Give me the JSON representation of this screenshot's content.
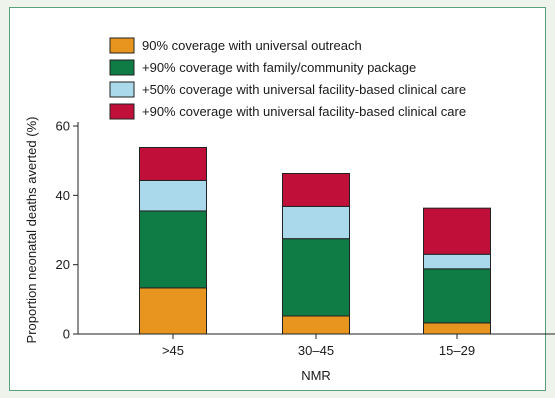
{
  "chart_data": {
    "type": "bar",
    "stacked": true,
    "title": "",
    "xlabel": "NMR",
    "ylabel": "Proportion neonatal deaths averted (%)",
    "ylim": [
      0,
      60
    ],
    "yticks": [
      "0",
      "20",
      "40",
      "60"
    ],
    "categories": [
      ">45",
      "30–45",
      "15–29"
    ],
    "grid": false,
    "legend_position": "top",
    "series": [
      {
        "name": "90% coverage with universal outreach",
        "color": "#e8951f",
        "values": [
          13.3,
          5.2,
          3.2
        ]
      },
      {
        "name": "+90% coverage with family/community package",
        "color": "#0f7b45",
        "values": [
          22.2,
          22.3,
          15.6
        ]
      },
      {
        "name": "+50% coverage with universal facility-based clinical care",
        "color": "#a9d9ea",
        "values": [
          8.8,
          9.3,
          4.2
        ]
      },
      {
        "name": "+90% coverage with universal facility-based clinical care",
        "color": "#c0103a",
        "values": [
          9.5,
          9.5,
          13.3
        ]
      }
    ]
  }
}
